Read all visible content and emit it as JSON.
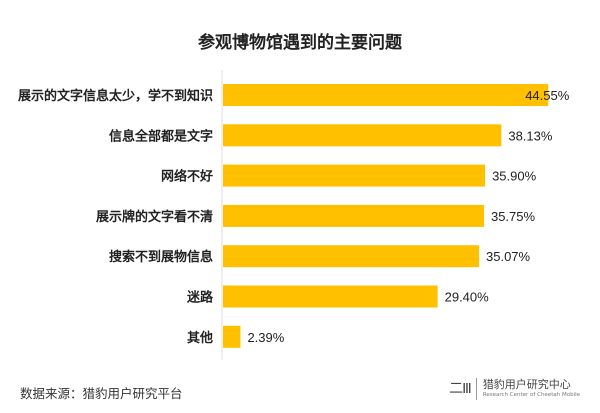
{
  "chart_data": {
    "type": "bar",
    "orientation": "horizontal",
    "title": "参观博物馆遇到的主要问题",
    "categories": [
      "展示的文字信息太少，学不到知识",
      "信息全部都是文字",
      "网络不好",
      "展示牌的文字看不清",
      "搜索不到展物信息",
      "迷路",
      "其他"
    ],
    "values": [
      44.55,
      38.13,
      35.9,
      35.75,
      35.07,
      29.4,
      2.39
    ],
    "data_labels": [
      "44.55%",
      "38.13%",
      "35.90%",
      "35.75%",
      "35.07%",
      "29.40%",
      "2.39%"
    ],
    "xlim": [
      0,
      50
    ],
    "grid": false,
    "bar_color": "#FFC000"
  },
  "footer": {
    "source": "数据来源：猎豹用户研究平台",
    "logo_mark": "CMX",
    "logo_name": "猎豹用户研究中心",
    "logo_sub": "Research Center of Cheetah Mobile"
  }
}
